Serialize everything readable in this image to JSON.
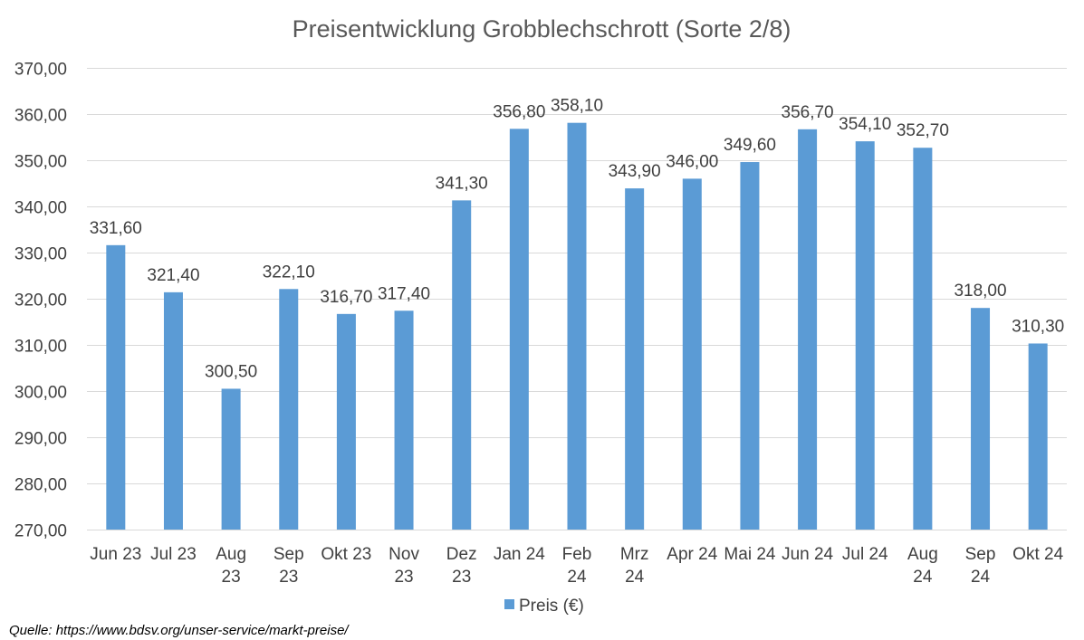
{
  "chart_data": {
    "type": "bar",
    "title": "Preisentwicklung Grobblechschrott (Sorte 2/8)",
    "xlabel": "",
    "ylabel": "",
    "categories": [
      [
        "Jun 23"
      ],
      [
        "Jul 23"
      ],
      [
        "Aug",
        "23"
      ],
      [
        "Sep",
        "23"
      ],
      [
        "Okt 23"
      ],
      [
        "Nov",
        "23"
      ],
      [
        "Dez",
        "23"
      ],
      [
        "Jan 24"
      ],
      [
        "Feb",
        "24"
      ],
      [
        "Mrz",
        "24"
      ],
      [
        "Apr 24"
      ],
      [
        "Mai 24"
      ],
      [
        "Jun 24"
      ],
      [
        "Jul 24"
      ],
      [
        "Aug",
        "24"
      ],
      [
        "Sep",
        "24"
      ],
      [
        "Okt 24"
      ]
    ],
    "series": [
      {
        "name": "Preis (€)",
        "color": "#5b9bd5",
        "values": [
          331.6,
          321.4,
          300.5,
          322.1,
          316.7,
          317.4,
          341.3,
          356.8,
          358.1,
          343.9,
          346.0,
          349.6,
          356.7,
          354.1,
          352.7,
          318.0,
          310.3
        ],
        "labels": [
          "331,60",
          "321,40",
          "300,50",
          "322,10",
          "316,70",
          "317,40",
          "341,30",
          "356,80",
          "358,10",
          "343,90",
          "346,00",
          "349,60",
          "356,70",
          "354,10",
          "352,70",
          "318,00",
          "310,30"
        ]
      }
    ],
    "ylim": [
      270,
      370
    ],
    "yticks": [
      "270,00",
      "280,00",
      "290,00",
      "300,00",
      "310,00",
      "320,00",
      "330,00",
      "340,00",
      "350,00",
      "360,00",
      "370,00"
    ],
    "grid": true,
    "legend": "bottom",
    "gridColor": "#d9d9d9",
    "textColor": "#404040",
    "titleColor": "#595959"
  },
  "source": "Quelle: https://www.bdsv.org/unser-service/markt-preise/"
}
